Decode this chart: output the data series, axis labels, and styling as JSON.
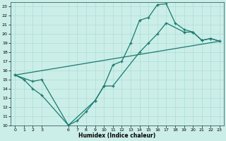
{
  "xlabel": "Humidex (Indice chaleur)",
  "bg_color": "#cceee8",
  "grid_color": "#aaddd8",
  "line_color": "#1a7a6e",
  "xlim": [
    -0.5,
    23.5
  ],
  "ylim": [
    10,
    23.5
  ],
  "yticks": [
    10,
    11,
    12,
    13,
    14,
    15,
    16,
    17,
    18,
    19,
    20,
    21,
    22,
    23
  ],
  "xticks": [
    0,
    1,
    2,
    3,
    6,
    7,
    8,
    9,
    10,
    11,
    12,
    13,
    14,
    15,
    16,
    17,
    18,
    19,
    20,
    21,
    22,
    23
  ],
  "line1_x": [
    0,
    1,
    2,
    3,
    6,
    7,
    8,
    9,
    10,
    11,
    12,
    13,
    14,
    15,
    16,
    17,
    18,
    19,
    20,
    21,
    22,
    23
  ],
  "line1_y": [
    15.5,
    15.0,
    14.0,
    13.3,
    10.0,
    10.5,
    11.5,
    12.7,
    14.3,
    16.6,
    17.0,
    19.0,
    21.5,
    21.8,
    23.2,
    23.3,
    21.2,
    20.5,
    20.2,
    19.3,
    19.5,
    19.2
  ],
  "line2_x": [
    0,
    2,
    3,
    6,
    9,
    10,
    11,
    14,
    15,
    16,
    17,
    19,
    20,
    21,
    22,
    23
  ],
  "line2_y": [
    15.5,
    14.8,
    15.0,
    10.0,
    12.7,
    14.3,
    14.3,
    18.0,
    19.0,
    20.0,
    21.2,
    20.2,
    20.2,
    19.3,
    19.5,
    19.2
  ],
  "line3_x": [
    0,
    23
  ],
  "line3_y": [
    15.5,
    19.2
  ]
}
